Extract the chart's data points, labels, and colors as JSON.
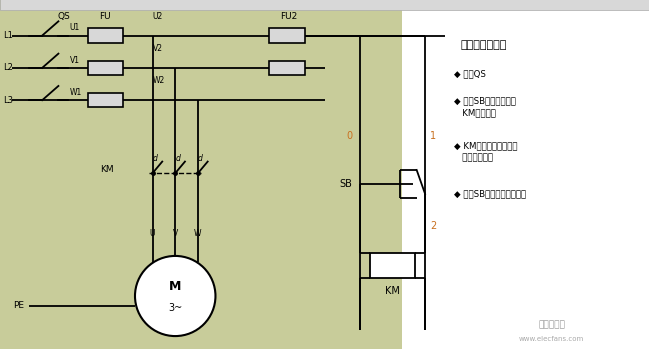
{
  "bg_color_green": "#c8cc9a",
  "white_bg": "#ffffff",
  "line_color": "#000000",
  "title_text": "工作流程分析：",
  "bullet1": "◆ 闭合QS",
  "bullet2": "◆ 按住SB控制电路闭合\n   KM线圈得电",
  "bullet3": "◆ KM主触点闭合主线路\n   接通电机启动",
  "bullet4": "◆ 松开SB电路失电电机停止",
  "fig_width": 6.49,
  "fig_height": 3.49
}
